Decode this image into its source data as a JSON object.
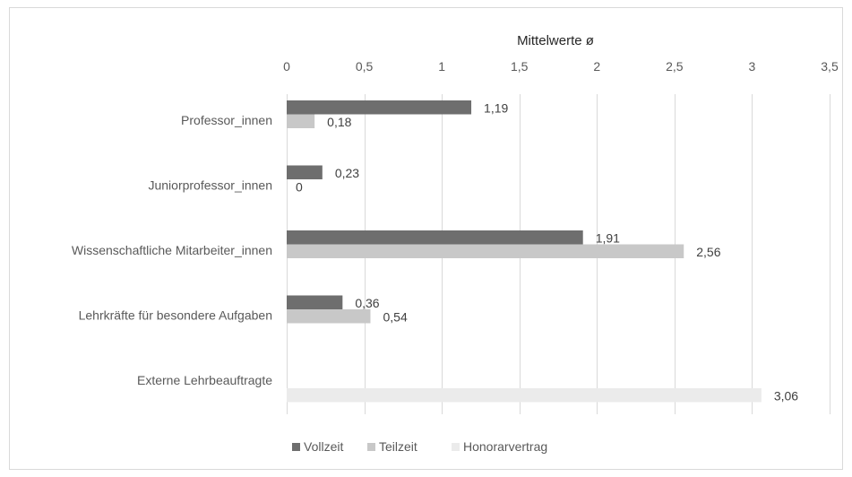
{
  "chart_data": {
    "type": "bar",
    "orientation": "horizontal",
    "title": "",
    "xlabel": "Mittelwerte ø",
    "ylabel": "",
    "xlim": [
      0,
      3.5
    ],
    "x_ticks": [
      "0",
      "0,5",
      "1",
      "1,5",
      "2",
      "2,5",
      "3",
      "3,5"
    ],
    "x_axis_position": "top",
    "grid": true,
    "legend_position": "bottom",
    "categories": [
      "Professor_innen",
      "Juniorprofessor_innen",
      "Wissenschaftliche Mitarbeiter_innen",
      "Lehrkräfte für besondere Aufgaben",
      "Externe Lehrbeauftragte"
    ],
    "series": [
      {
        "name": "Vollzeit",
        "color": "#6e6e6e",
        "values": [
          1.19,
          0.23,
          1.91,
          0.36,
          null
        ],
        "labels": [
          "1,19",
          "0,23",
          "1,91",
          "0,36",
          ""
        ]
      },
      {
        "name": "Teilzeit",
        "color": "#c8c8c8",
        "values": [
          0.18,
          0,
          2.56,
          0.54,
          null
        ],
        "labels": [
          "0,18",
          "0",
          "2,56",
          "0,54",
          ""
        ]
      },
      {
        "name": "Honorarvertrag",
        "color": "#ebebeb",
        "values": [
          null,
          null,
          null,
          null,
          3.06
        ],
        "labels": [
          "",
          "",
          "",
          "",
          "3,06"
        ]
      }
    ]
  }
}
